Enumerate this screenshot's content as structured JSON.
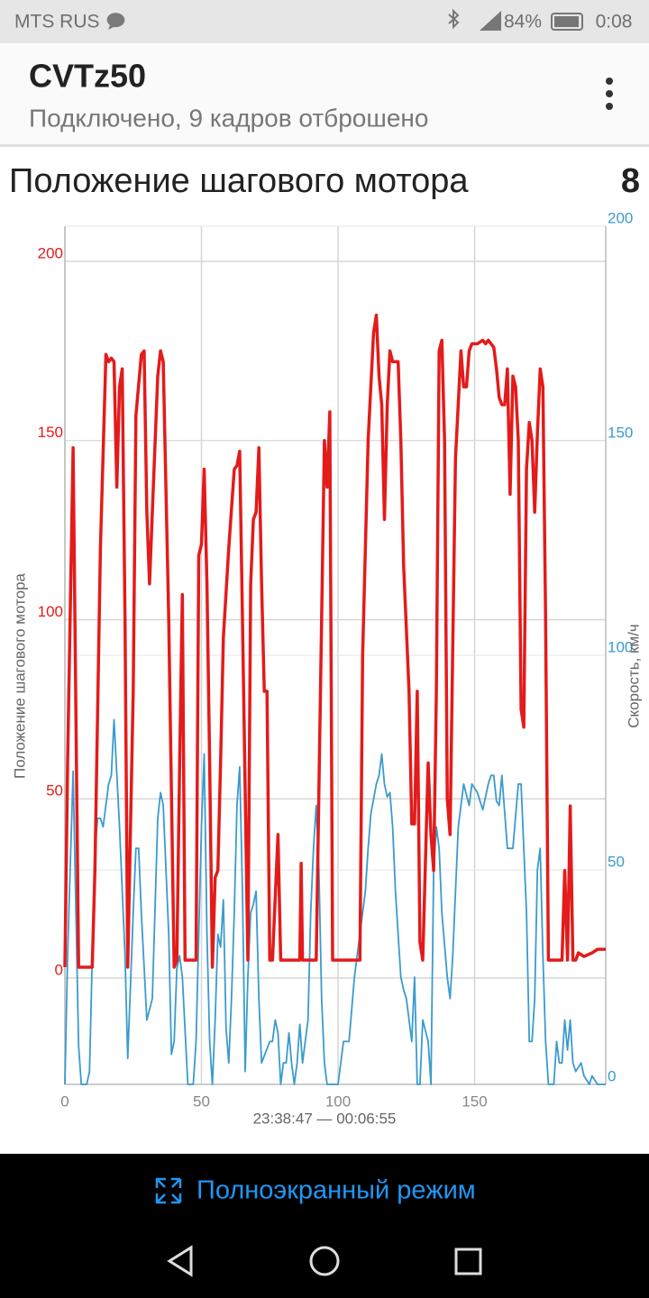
{
  "status": {
    "carrier": "MTS RUS",
    "battery": "84%",
    "time": "0:08"
  },
  "app": {
    "title": "CVTz50",
    "subtitle": "Подключено, 9 кадров отброшено"
  },
  "header": {
    "title": "Положение шагового мотора",
    "value": "8"
  },
  "chart_data": {
    "type": "line",
    "ylabel": "Положение шагового мотора",
    "y2label": "Скорость, км/ч",
    "xlabel": "23:38:47 — 00:06:55",
    "xlim": [
      0,
      198
    ],
    "xticks": [
      0,
      50,
      100,
      150
    ],
    "ylim": [
      -29.7,
      209.8
    ],
    "yticks": [
      0,
      50,
      100,
      150,
      200
    ],
    "y2lim": [
      0,
      200
    ],
    "y2ticks": [
      0,
      50,
      100,
      150,
      200
    ],
    "grid": true,
    "series": [
      {
        "color": "#e31b1b",
        "axis": "y",
        "x": [
          0,
          1,
          3,
          5,
          10,
          11,
          13,
          15,
          16,
          17,
          18,
          19,
          20,
          21,
          22,
          23,
          25,
          26,
          28,
          29,
          30,
          31,
          32,
          34,
          35,
          36,
          38,
          40,
          41,
          42,
          43,
          44,
          46,
          48,
          49,
          50,
          51,
          52,
          53,
          54,
          55,
          56,
          57,
          58,
          60,
          62,
          63,
          64,
          65,
          67,
          68,
          69,
          70,
          71,
          72,
          73,
          74,
          75,
          76,
          78,
          79,
          83,
          86,
          86.5,
          87,
          90,
          92,
          94,
          95,
          96,
          97,
          98,
          100,
          108,
          109,
          111,
          113,
          114,
          115,
          116,
          117,
          118,
          119,
          120,
          122,
          123,
          124,
          126,
          127,
          128,
          129,
          130,
          131,
          133,
          134,
          135,
          136,
          137,
          138,
          139,
          140,
          141,
          143,
          145,
          146,
          147,
          148,
          149,
          151,
          153,
          154,
          155,
          157,
          158,
          159,
          160,
          161,
          162,
          163,
          164,
          165,
          166,
          167,
          168,
          169,
          170,
          171,
          172,
          173,
          174,
          175,
          176,
          177,
          182,
          183,
          184,
          185,
          186,
          187,
          188,
          190,
          193,
          195,
          198
        ],
        "values": [
          3,
          60,
          148,
          3,
          3,
          30,
          120,
          174,
          172,
          173,
          172,
          137,
          165,
          170,
          100,
          3,
          80,
          157,
          174,
          175,
          130,
          110,
          130,
          168,
          175,
          172,
          100,
          3,
          5,
          60,
          107,
          5,
          5,
          5,
          118,
          121,
          142,
          110,
          60,
          3,
          28,
          30,
          60,
          95,
          120,
          142,
          143,
          147,
          100,
          5,
          110,
          128,
          130,
          148,
          110,
          80,
          80,
          5,
          5,
          40,
          5,
          5,
          5,
          32,
          5,
          5,
          5,
          100,
          150,
          137,
          158,
          5,
          5,
          5,
          90,
          150,
          180,
          185,
          168,
          160,
          128,
          160,
          175,
          172,
          172,
          150,
          115,
          80,
          43,
          43,
          80,
          10,
          5,
          60,
          40,
          30,
          80,
          175,
          178,
          150,
          50,
          40,
          145,
          175,
          165,
          165,
          175,
          177,
          177,
          178,
          177,
          178,
          176,
          170,
          162,
          160,
          160,
          170,
          135,
          168,
          165,
          150,
          75,
          70,
          142,
          155,
          150,
          130,
          152,
          170,
          165,
          100,
          5,
          5,
          30,
          5,
          48,
          5,
          5,
          7,
          6,
          7,
          8,
          8
        ]
      },
      {
        "color": "#3a9bcc",
        "axis": "y2",
        "x": [
          0,
          1,
          3,
          5,
          6,
          8,
          9,
          11,
          12,
          13,
          14,
          16,
          17,
          18,
          20,
          22,
          23,
          25,
          26,
          27,
          28,
          30,
          32,
          34,
          35,
          36,
          38,
          39,
          40,
          41,
          42,
          43,
          45,
          47,
          48,
          50,
          51,
          52,
          53,
          54,
          55,
          56,
          57,
          58,
          59,
          60,
          61,
          62,
          63,
          64,
          65,
          66,
          67,
          68,
          69,
          70,
          71,
          72,
          75,
          76,
          77,
          78,
          79,
          80,
          81,
          82,
          83,
          84,
          85,
          86,
          87,
          89,
          90,
          91,
          92,
          93,
          94,
          95,
          96,
          100,
          102,
          104,
          106,
          110,
          111,
          112,
          114,
          115,
          116,
          117,
          118,
          119,
          120,
          121,
          123,
          124,
          125,
          127,
          128,
          129,
          130,
          131,
          133,
          134,
          135,
          136,
          137,
          138,
          140,
          141,
          142,
          144,
          146,
          148,
          149,
          151,
          152,
          153,
          155,
          156,
          157,
          158,
          159,
          160,
          162,
          164,
          166,
          167,
          169,
          170,
          171,
          172,
          173,
          174,
          175,
          176,
          177,
          179,
          180,
          181,
          182,
          183,
          184,
          185,
          186,
          187,
          189,
          190,
          192,
          193,
          195,
          198
        ],
        "values": [
          0,
          30,
          73,
          9,
          0,
          0,
          3,
          55,
          62,
          62,
          60,
          70,
          72,
          85,
          60,
          30,
          6,
          40,
          55,
          55,
          40,
          15,
          20,
          62,
          68,
          65,
          35,
          7,
          10,
          27,
          30,
          25,
          0,
          0,
          10,
          60,
          77,
          35,
          10,
          0,
          15,
          35,
          32,
          43,
          13,
          5,
          20,
          40,
          65,
          74,
          45,
          3,
          25,
          40,
          42,
          45,
          20,
          5,
          10,
          10,
          15,
          12,
          0,
          5,
          5,
          12,
          5,
          0,
          5,
          14,
          5,
          15,
          40,
          55,
          65,
          50,
          20,
          5,
          0,
          0,
          10,
          10,
          25,
          45,
          55,
          63,
          70,
          72,
          77,
          70,
          67,
          68,
          60,
          45,
          25,
          22,
          20,
          10,
          25,
          0,
          0,
          15,
          10,
          0,
          50,
          60,
          55,
          40,
          25,
          20,
          30,
          60,
          70,
          65,
          70,
          68,
          66,
          64,
          70,
          72,
          72,
          66,
          65,
          72,
          55,
          55,
          70,
          70,
          40,
          10,
          10,
          20,
          50,
          55,
          30,
          10,
          0,
          0,
          10,
          5,
          5,
          15,
          8,
          15,
          5,
          3,
          5,
          2,
          0,
          2,
          0,
          0
        ]
      }
    ]
  },
  "footer": {
    "button": "Полноэкранный режим"
  }
}
